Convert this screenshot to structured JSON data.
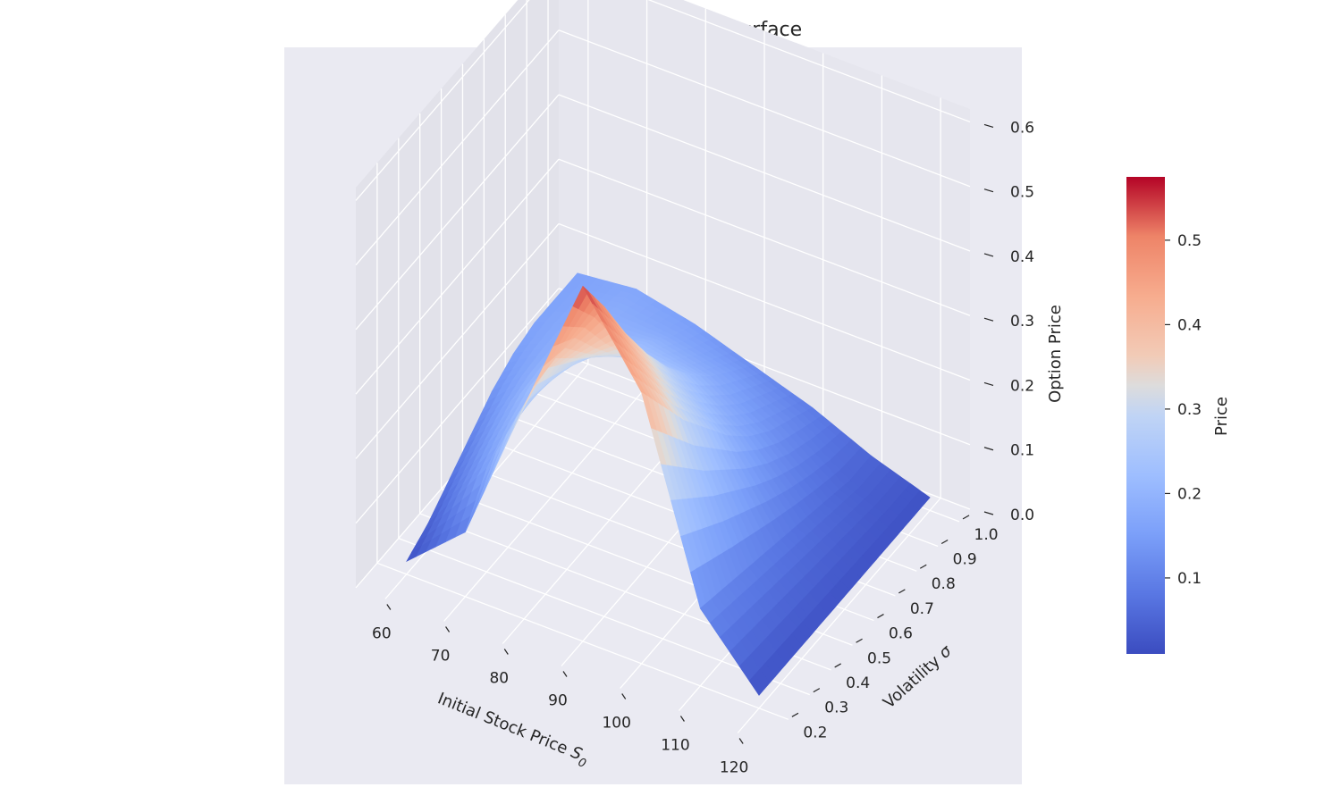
{
  "chart_data": {
    "type": "surface3d",
    "title": "Up-and-Out Call Delta Surface",
    "x_axis": {
      "label": "Initial Stock Price",
      "label_symbol": "S",
      "label_subscript": "0",
      "range": [
        55,
        125
      ],
      "ticks": [
        60,
        70,
        80,
        90,
        100,
        110,
        120
      ]
    },
    "y_axis": {
      "label": "Volatility",
      "label_symbol": "σ",
      "range": [
        0.1,
        1.05
      ],
      "ticks": [
        0.2,
        0.3,
        0.4,
        0.5,
        0.6,
        0.7,
        0.8,
        0.9,
        1.0
      ]
    },
    "z_axis": {
      "label": "Option Price",
      "range": [
        0.0,
        0.62
      ],
      "ticks": [
        0.0,
        0.1,
        0.2,
        0.3,
        0.4,
        0.5,
        0.6
      ]
    },
    "colorbar": {
      "label": "Price",
      "colormap": "coolwarm",
      "range": [
        0.01,
        0.575
      ],
      "ticks": [
        0.1,
        0.2,
        0.3,
        0.4,
        0.5
      ]
    },
    "grid": true,
    "surface": {
      "s0_samples": [
        60,
        70,
        80,
        90,
        100,
        110,
        120
      ],
      "sigma_samples": [
        0.2,
        0.3,
        0.4,
        0.5,
        0.6,
        0.7,
        0.8,
        0.9,
        1.0
      ],
      "values": [
        [
          0.02,
          0.1,
          0.33,
          0.55,
          0.42,
          0.12,
          0.02
        ],
        [
          0.04,
          0.16,
          0.35,
          0.48,
          0.36,
          0.11,
          0.02
        ],
        [
          0.07,
          0.19,
          0.32,
          0.4,
          0.3,
          0.1,
          0.02
        ],
        [
          0.1,
          0.21,
          0.29,
          0.33,
          0.25,
          0.09,
          0.02
        ],
        [
          0.13,
          0.21,
          0.26,
          0.27,
          0.2,
          0.08,
          0.02
        ],
        [
          0.15,
          0.2,
          0.23,
          0.22,
          0.16,
          0.07,
          0.02
        ],
        [
          0.16,
          0.19,
          0.2,
          0.18,
          0.13,
          0.06,
          0.02
        ],
        [
          0.16,
          0.18,
          0.17,
          0.15,
          0.11,
          0.05,
          0.02
        ],
        [
          0.16,
          0.17,
          0.15,
          0.12,
          0.09,
          0.05,
          0.02
        ]
      ]
    }
  }
}
